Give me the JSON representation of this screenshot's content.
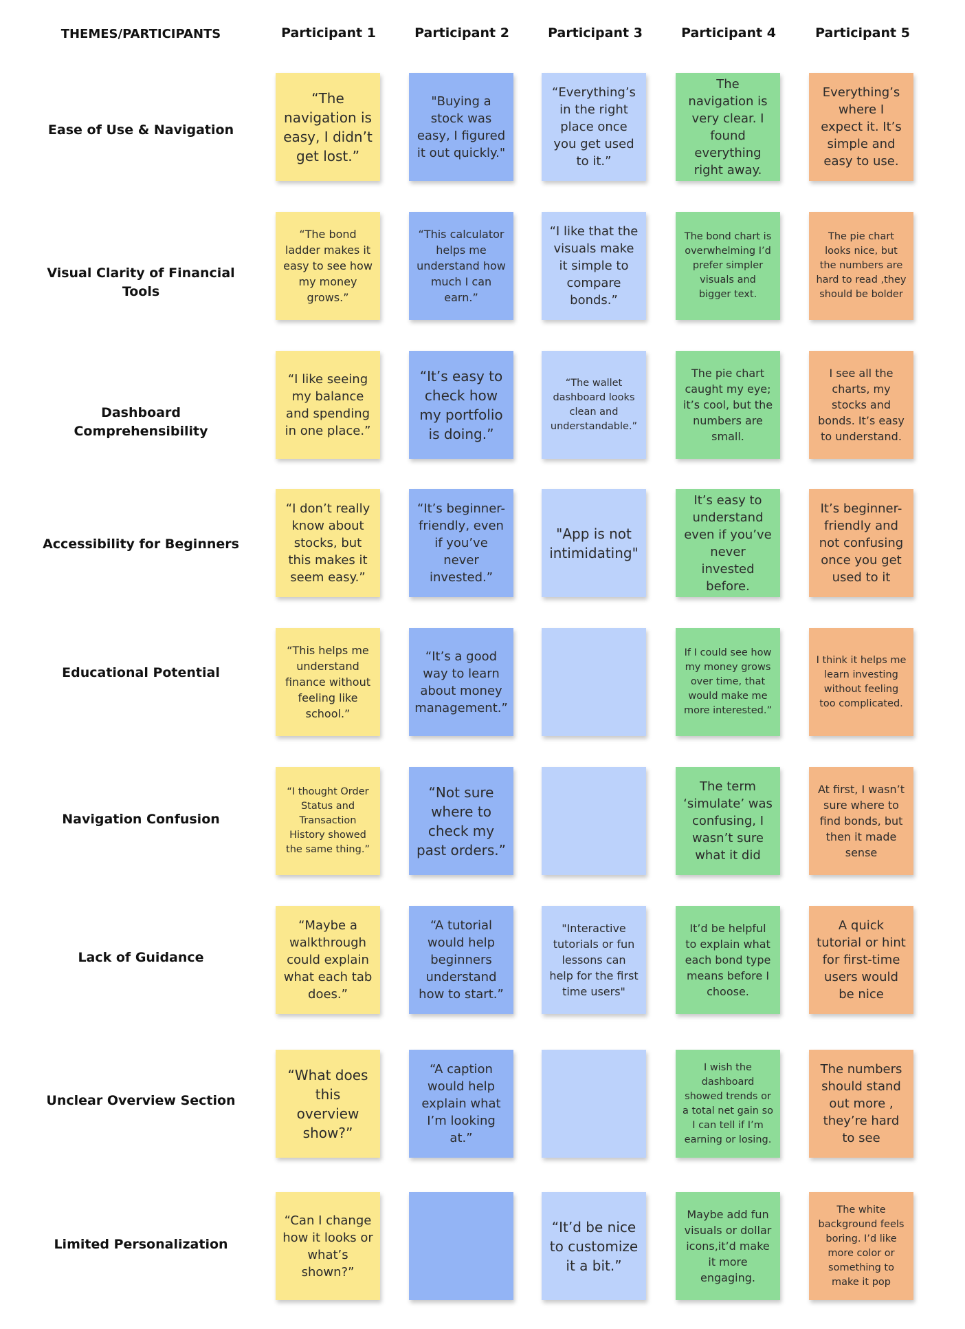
{
  "header": {
    "themes_label": "THEMES/PARTICIPANTS",
    "participants": [
      "Participant 1",
      "Participant 2",
      "Participant 3",
      "Participant 4",
      "Participant 5"
    ]
  },
  "colors": {
    "participant_1": "#fbe88e",
    "participant_2": "#93b4f5",
    "participant_3": "#bcd2fb",
    "participant_4": "#8edc98",
    "participant_5": "#f4b786"
  },
  "rows": [
    {
      "theme": "Ease of Use & Navigation",
      "notes": [
        "“The navigation is easy, I didn’t get lost.”",
        "\"Buying a stock was easy, I figured it out quickly.\"",
        "“Everything’s in the right place once you get used to it.”",
        "The navigation is very clear. I found everything right away.",
        "Everything’s where I expect it. It’s simple and easy to use."
      ]
    },
    {
      "theme": "Visual Clarity of Financial Tools",
      "notes": [
        "“The bond ladder makes it easy to see how my money grows.”",
        "“This calculator helps me understand how much I can earn.”",
        "“I like that the visuals make it simple to compare bonds.”",
        "The bond chart is overwhelming  I’d prefer simpler visuals and bigger text.",
        "The pie chart looks nice, but the numbers are hard to read ,they should be bolder"
      ]
    },
    {
      "theme": "Dashboard Comprehensibility",
      "notes": [
        "“I like seeing my balance and spending in one place.”",
        "“It’s easy to check how my portfolio is doing.”",
        "“The wallet dashboard looks clean and understandable.”",
        "The pie chart caught my eye; it’s cool, but the numbers are small.",
        "I see all the charts, my stocks and bonds. It’s easy to understand."
      ]
    },
    {
      "theme": "Accessibility for Beginners",
      "notes": [
        "“I don’t really know about stocks, but this makes it seem easy.”",
        "“It’s beginner-friendly, even if you’ve never invested.”",
        "\"App is not intimidating\"",
        "It’s easy to understand even if you’ve never invested before.",
        "It’s beginner-friendly and not confusing once you get used to it"
      ]
    },
    {
      "theme": "Educational Potential",
      "notes": [
        "“This helps me understand finance without feeling like school.”",
        "“It’s a good way to learn about money management.”",
        "",
        "If I could see how my money grows over time, that would make me more interested.”",
        "I think it helps me learn investing without feeling too complicated."
      ]
    },
    {
      "theme": "Navigation Confusion",
      "notes": [
        "“I thought Order Status and Transaction History showed the same thing.”",
        "“Not sure where to check my past orders.”",
        "",
        "The term ‘simulate’ was confusing, I wasn’t sure what it did",
        "At first, I wasn’t sure where to find bonds, but then it made sense"
      ]
    },
    {
      "theme": "Lack of Guidance",
      "notes": [
        "“Maybe a walkthrough could explain what each tab does.”",
        "“A tutorial would help beginners understand how to start.”",
        "\"Interactive tutorials or fun lessons can help for the first time users\"",
        "It’d be helpful to explain what each bond type means before I choose.",
        "A quick tutorial or hint for first-time users would be nice"
      ]
    },
    {
      "theme": "Unclear Overview Section",
      "notes": [
        "“What does this overview show?”",
        "“A caption would help explain what I’m looking at.”",
        "",
        "I wish the dashboard showed trends or a total net gain so I can tell if I’m earning or losing.",
        "The numbers should stand out more , they’re hard to see"
      ]
    },
    {
      "theme": "Limited Personalization",
      "notes": [
        "“Can I change how it looks or what’s shown?”",
        "",
        "“It’d be nice to customize it a bit.”",
        "Maybe add fun visuals or dollar icons,it’d make it more engaging.",
        "The white background feels boring. I’d like more color or something to make it pop"
      ]
    }
  ]
}
